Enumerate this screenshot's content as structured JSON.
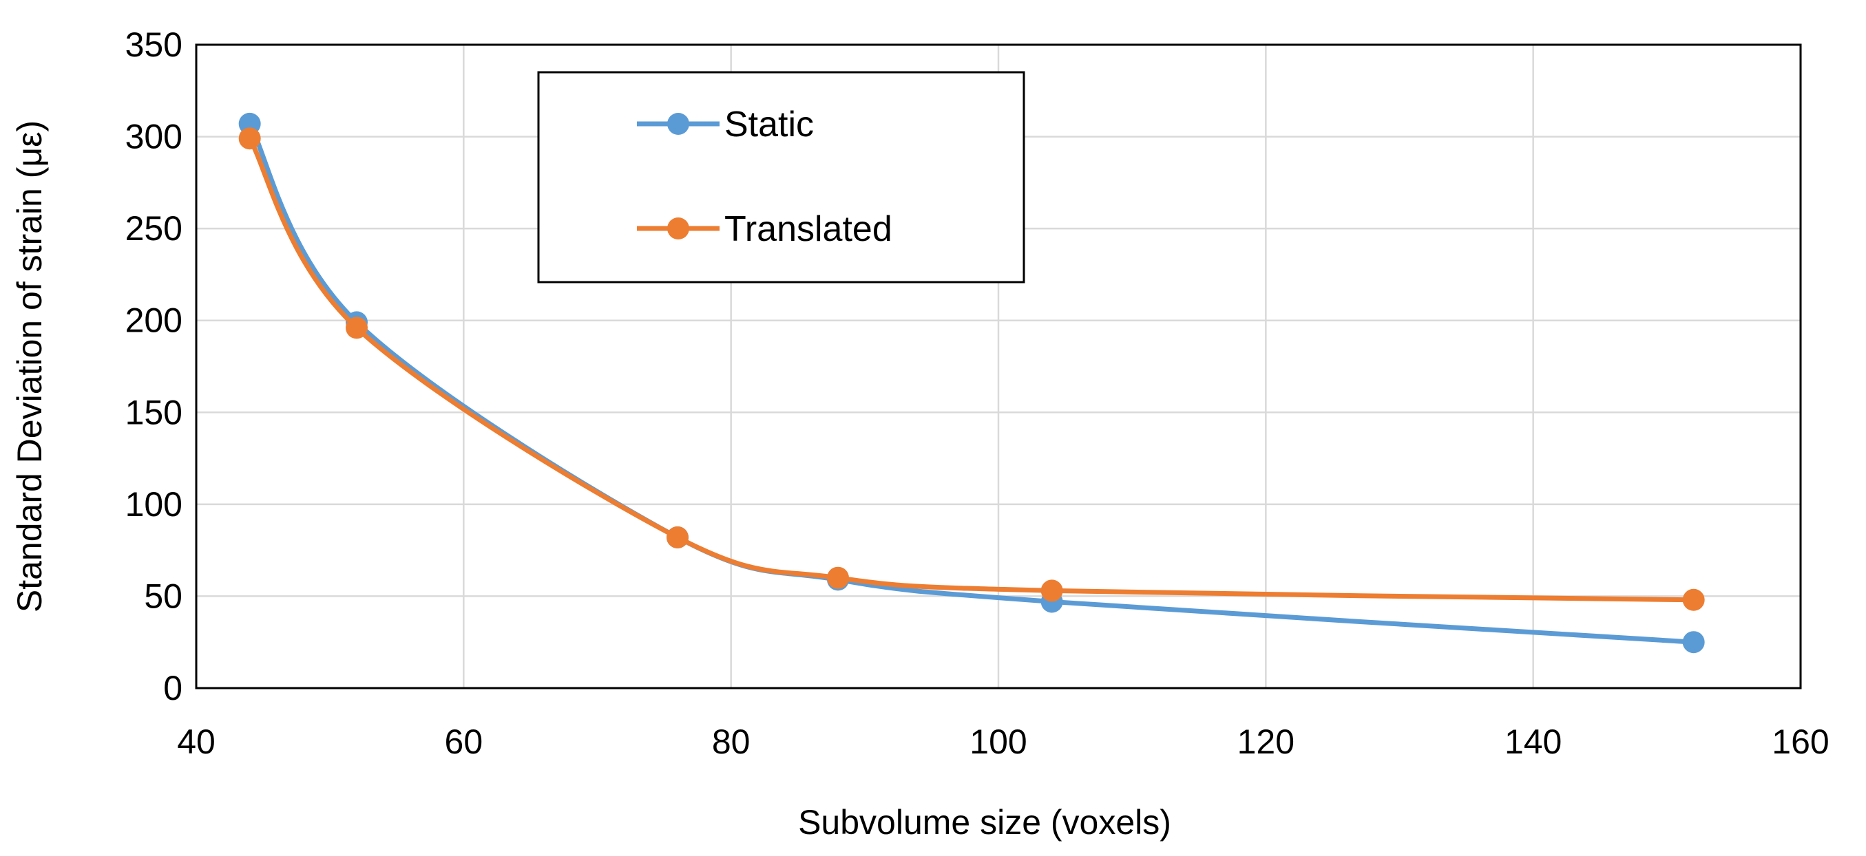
{
  "chart_data": {
    "type": "line",
    "title": "",
    "xlabel": "Subvolume size (voxels)",
    "ylabel": "Standard Deviation of strain (με)",
    "xlim": [
      40,
      160
    ],
    "ylim": [
      0,
      350
    ],
    "xticks": [
      40,
      60,
      80,
      100,
      120,
      140,
      160
    ],
    "yticks": [
      0,
      50,
      100,
      150,
      200,
      250,
      300,
      350
    ],
    "grid": true,
    "legend": "top-left",
    "series": [
      {
        "name": "Static",
        "color": "#5B9BD5",
        "x": [
          44,
          52,
          76,
          88,
          104,
          152
        ],
        "y": [
          307,
          199,
          82,
          59,
          47,
          25
        ]
      },
      {
        "name": "Translated",
        "color": "#ED7D31",
        "x": [
          44,
          52,
          76,
          88,
          104,
          152
        ],
        "y": [
          299,
          196,
          82,
          60,
          53,
          48
        ]
      }
    ]
  }
}
